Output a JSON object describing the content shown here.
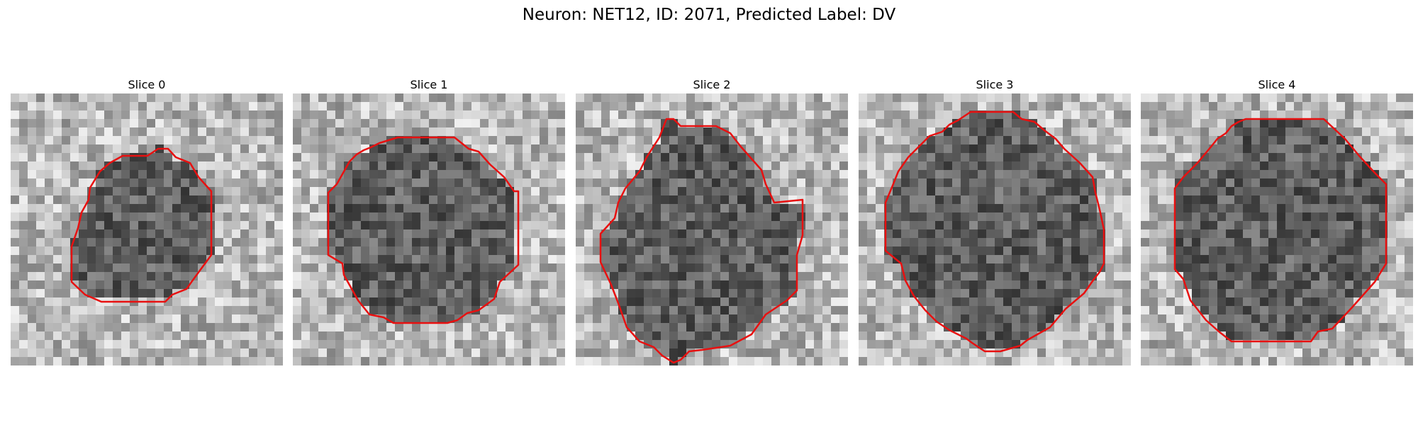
{
  "figure": {
    "title": "Neuron: NET12, ID: 2071, Predicted Label: DV"
  },
  "panels": [
    {
      "title": "Slice 0"
    },
    {
      "title": "Slice 1"
    },
    {
      "title": "Slice 2"
    },
    {
      "title": "Slice 3"
    },
    {
      "title": "Slice 4"
    }
  ],
  "style": {
    "contour_color": "#e81010"
  }
}
